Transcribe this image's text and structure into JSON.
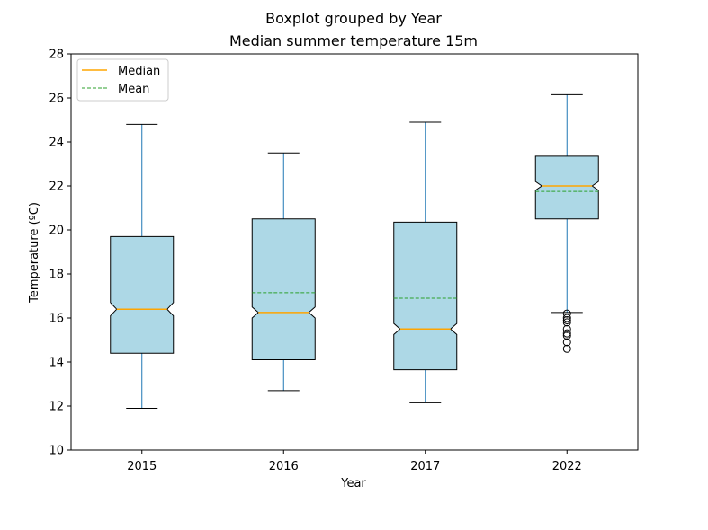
{
  "chart_data": {
    "type": "boxplot",
    "suptitle": "Boxplot grouped by Year",
    "title": "Median summer temperature 15m",
    "xlabel": "Year",
    "ylabel": "Temperature (ºC)",
    "ylim": [
      10,
      28
    ],
    "yticks": [
      10,
      12,
      14,
      16,
      18,
      20,
      22,
      24,
      26,
      28
    ],
    "categories": [
      "2015",
      "2016",
      "2017",
      "2022"
    ],
    "boxes": [
      {
        "label": "2015",
        "whisker_low": 11.9,
        "q1": 14.4,
        "median": 16.4,
        "q3": 19.7,
        "whisker_high": 24.8,
        "mean": 17.0,
        "notch_low": 16.1,
        "notch_high": 16.7,
        "outliers": []
      },
      {
        "label": "2016",
        "whisker_low": 12.7,
        "q1": 14.1,
        "median": 16.25,
        "q3": 20.5,
        "whisker_high": 23.5,
        "mean": 17.15,
        "notch_low": 16.0,
        "notch_high": 16.5,
        "outliers": []
      },
      {
        "label": "2017",
        "whisker_low": 12.15,
        "q1": 13.65,
        "median": 15.5,
        "q3": 20.35,
        "whisker_high": 24.9,
        "mean": 16.9,
        "notch_low": 15.25,
        "notch_high": 15.75,
        "outliers": []
      },
      {
        "label": "2022",
        "whisker_low": 16.25,
        "q1": 20.5,
        "median": 22.0,
        "q3": 23.35,
        "whisker_high": 26.15,
        "mean": 21.75,
        "notch_low": 21.8,
        "notch_high": 22.2,
        "outliers": [
          16.2,
          16.0,
          15.9,
          15.8,
          15.5,
          15.3,
          15.2,
          14.9,
          14.6
        ]
      }
    ],
    "legend": {
      "placement": "top-left",
      "entries": [
        {
          "label": "Median",
          "color": "#ffa500",
          "style": "solid"
        },
        {
          "label": "Mean",
          "color": "#2ca02c",
          "style": "dashed"
        }
      ]
    },
    "colors": {
      "box_fill": "#add8e6",
      "box_edge": "#000000",
      "whisker": "#1f77b4",
      "median": "#ffa500",
      "mean": "#2ca02c",
      "caps": "#000000",
      "outlier": "#000000"
    },
    "grid": false
  }
}
